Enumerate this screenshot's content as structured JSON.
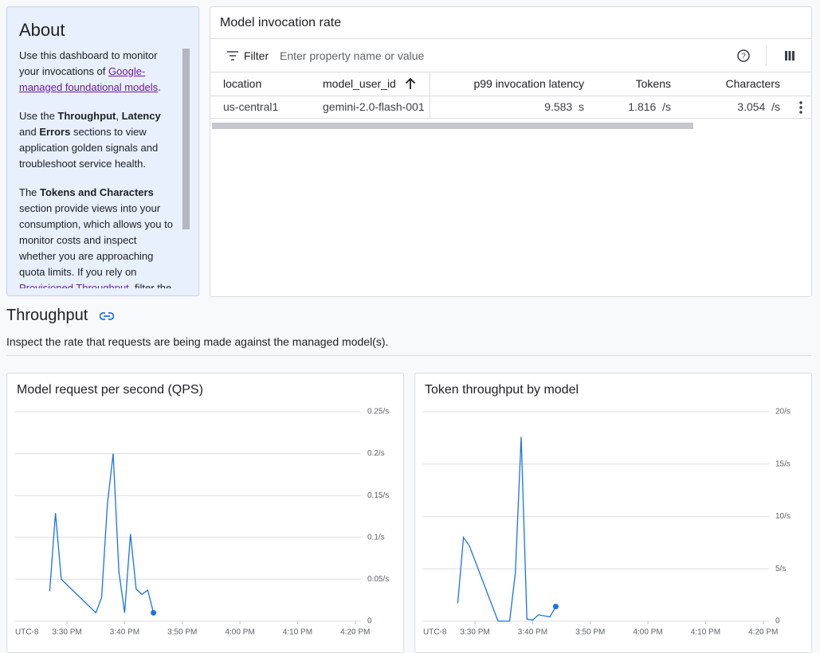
{
  "about": {
    "title": "About",
    "paragraphs": [
      [
        {
          "text": "Use this dashboard to monitor your invocations of "
        },
        {
          "text": "Google-managed foundational models",
          "style": "link"
        },
        {
          "text": "."
        }
      ],
      [
        {
          "text": "Use the "
        },
        {
          "text": "Throughput",
          "style": "bold"
        },
        {
          "text": ", "
        },
        {
          "text": "Latency",
          "style": "bold"
        },
        {
          "text": " and "
        },
        {
          "text": "Errors",
          "style": "bold"
        },
        {
          "text": " sections to view application golden signals and troubleshoot service health."
        }
      ],
      [
        {
          "text": "The "
        },
        {
          "text": "Tokens and Characters",
          "style": "bold"
        },
        {
          "text": " section provide views into your consumption, which allows you to monitor costs and inspect whether you are approaching quota limits. If you rely on "
        },
        {
          "text": "Provisioned Throughput",
          "style": "link"
        },
        {
          "text": ", filter the"
        }
      ]
    ]
  },
  "table": {
    "title": "Model invocation rate",
    "filter_label": "Filter",
    "filter_placeholder": "Enter property name or value",
    "columns": [
      "location",
      "model_user_id",
      "p99 invocation latency",
      "Tokens",
      "Characters"
    ],
    "rows": [
      [
        {
          "text": "us-central1"
        },
        {
          "text": "gemini-2.0-flash-001"
        },
        {
          "text": "9.583",
          "unit": "s"
        },
        {
          "text": "1.816",
          "unit": "/s"
        },
        {
          "text": "3.054",
          "unit": "/s"
        }
      ]
    ]
  },
  "section": {
    "title": "Throughput",
    "description": "Inspect the rate that requests are being made against the managed model(s)."
  },
  "chart_data": [
    {
      "type": "line",
      "title": "Model request per second (QPS)",
      "timezone": "UTC-8",
      "color": "#1a73e8",
      "grid": true,
      "x": [
        "3:27 PM",
        "3:28 PM",
        "3:29 PM",
        "3:35 PM",
        "3:36 PM",
        "3:37 PM",
        "3:38 PM",
        "3:39 PM",
        "3:40 PM",
        "3:41 PM",
        "3:42 PM",
        "3:43 PM",
        "3:44 PM",
        "3:45 PM"
      ],
      "values": [
        0.036,
        0.129,
        0.05,
        0.01,
        0.028,
        0.139,
        0.2,
        0.059,
        0.01,
        0.104,
        0.038,
        0.032,
        0.037,
        0.01
      ],
      "xlim": [
        "3:21 PM",
        "4:21 PM"
      ],
      "xticks": [
        "3:30 PM",
        "3:40 PM",
        "3:50 PM",
        "4:00 PM",
        "4:10 PM",
        "4:20 PM"
      ],
      "ylim": [
        0,
        0.25
      ],
      "yticks": [
        0,
        {
          "value": 0.05,
          "label": "0.05/s"
        },
        {
          "value": 0.1,
          "label": "0.1/s"
        },
        {
          "value": 0.15,
          "label": "0.15/s"
        },
        {
          "value": 0.2,
          "label": "0.2/s"
        },
        {
          "value": 0.25,
          "label": "0.25/s"
        }
      ]
    },
    {
      "type": "line",
      "title": "Token throughput by model",
      "timezone": "UTC-8",
      "color": "#1a73e8",
      "grid": true,
      "x": [
        "3:27 PM",
        "3:28 PM",
        "3:29 PM",
        "3:34 PM",
        "3:36 PM",
        "3:37 PM",
        "3:38 PM",
        "3:39 PM",
        "3:40 PM",
        "3:41 PM",
        "3:42 PM",
        "3:43 PM",
        "3:44 PM"
      ],
      "values": [
        1.7,
        8.0,
        7.2,
        0,
        0,
        4.6,
        17.6,
        0.2,
        0.1,
        0.6,
        0.5,
        0.4,
        1.4
      ],
      "xlim": [
        "3:21 PM",
        "4:21 PM"
      ],
      "xticks": [
        "3:30 PM",
        "3:40 PM",
        "3:50 PM",
        "4:00 PM",
        "4:10 PM",
        "4:20 PM"
      ],
      "ylim": [
        0,
        20
      ],
      "yticks": [
        0,
        {
          "value": 5,
          "label": "5/s"
        },
        {
          "value": 10,
          "label": "10/s"
        },
        {
          "value": 15,
          "label": "15/s"
        },
        {
          "value": 20,
          "label": "20/s"
        }
      ]
    }
  ]
}
